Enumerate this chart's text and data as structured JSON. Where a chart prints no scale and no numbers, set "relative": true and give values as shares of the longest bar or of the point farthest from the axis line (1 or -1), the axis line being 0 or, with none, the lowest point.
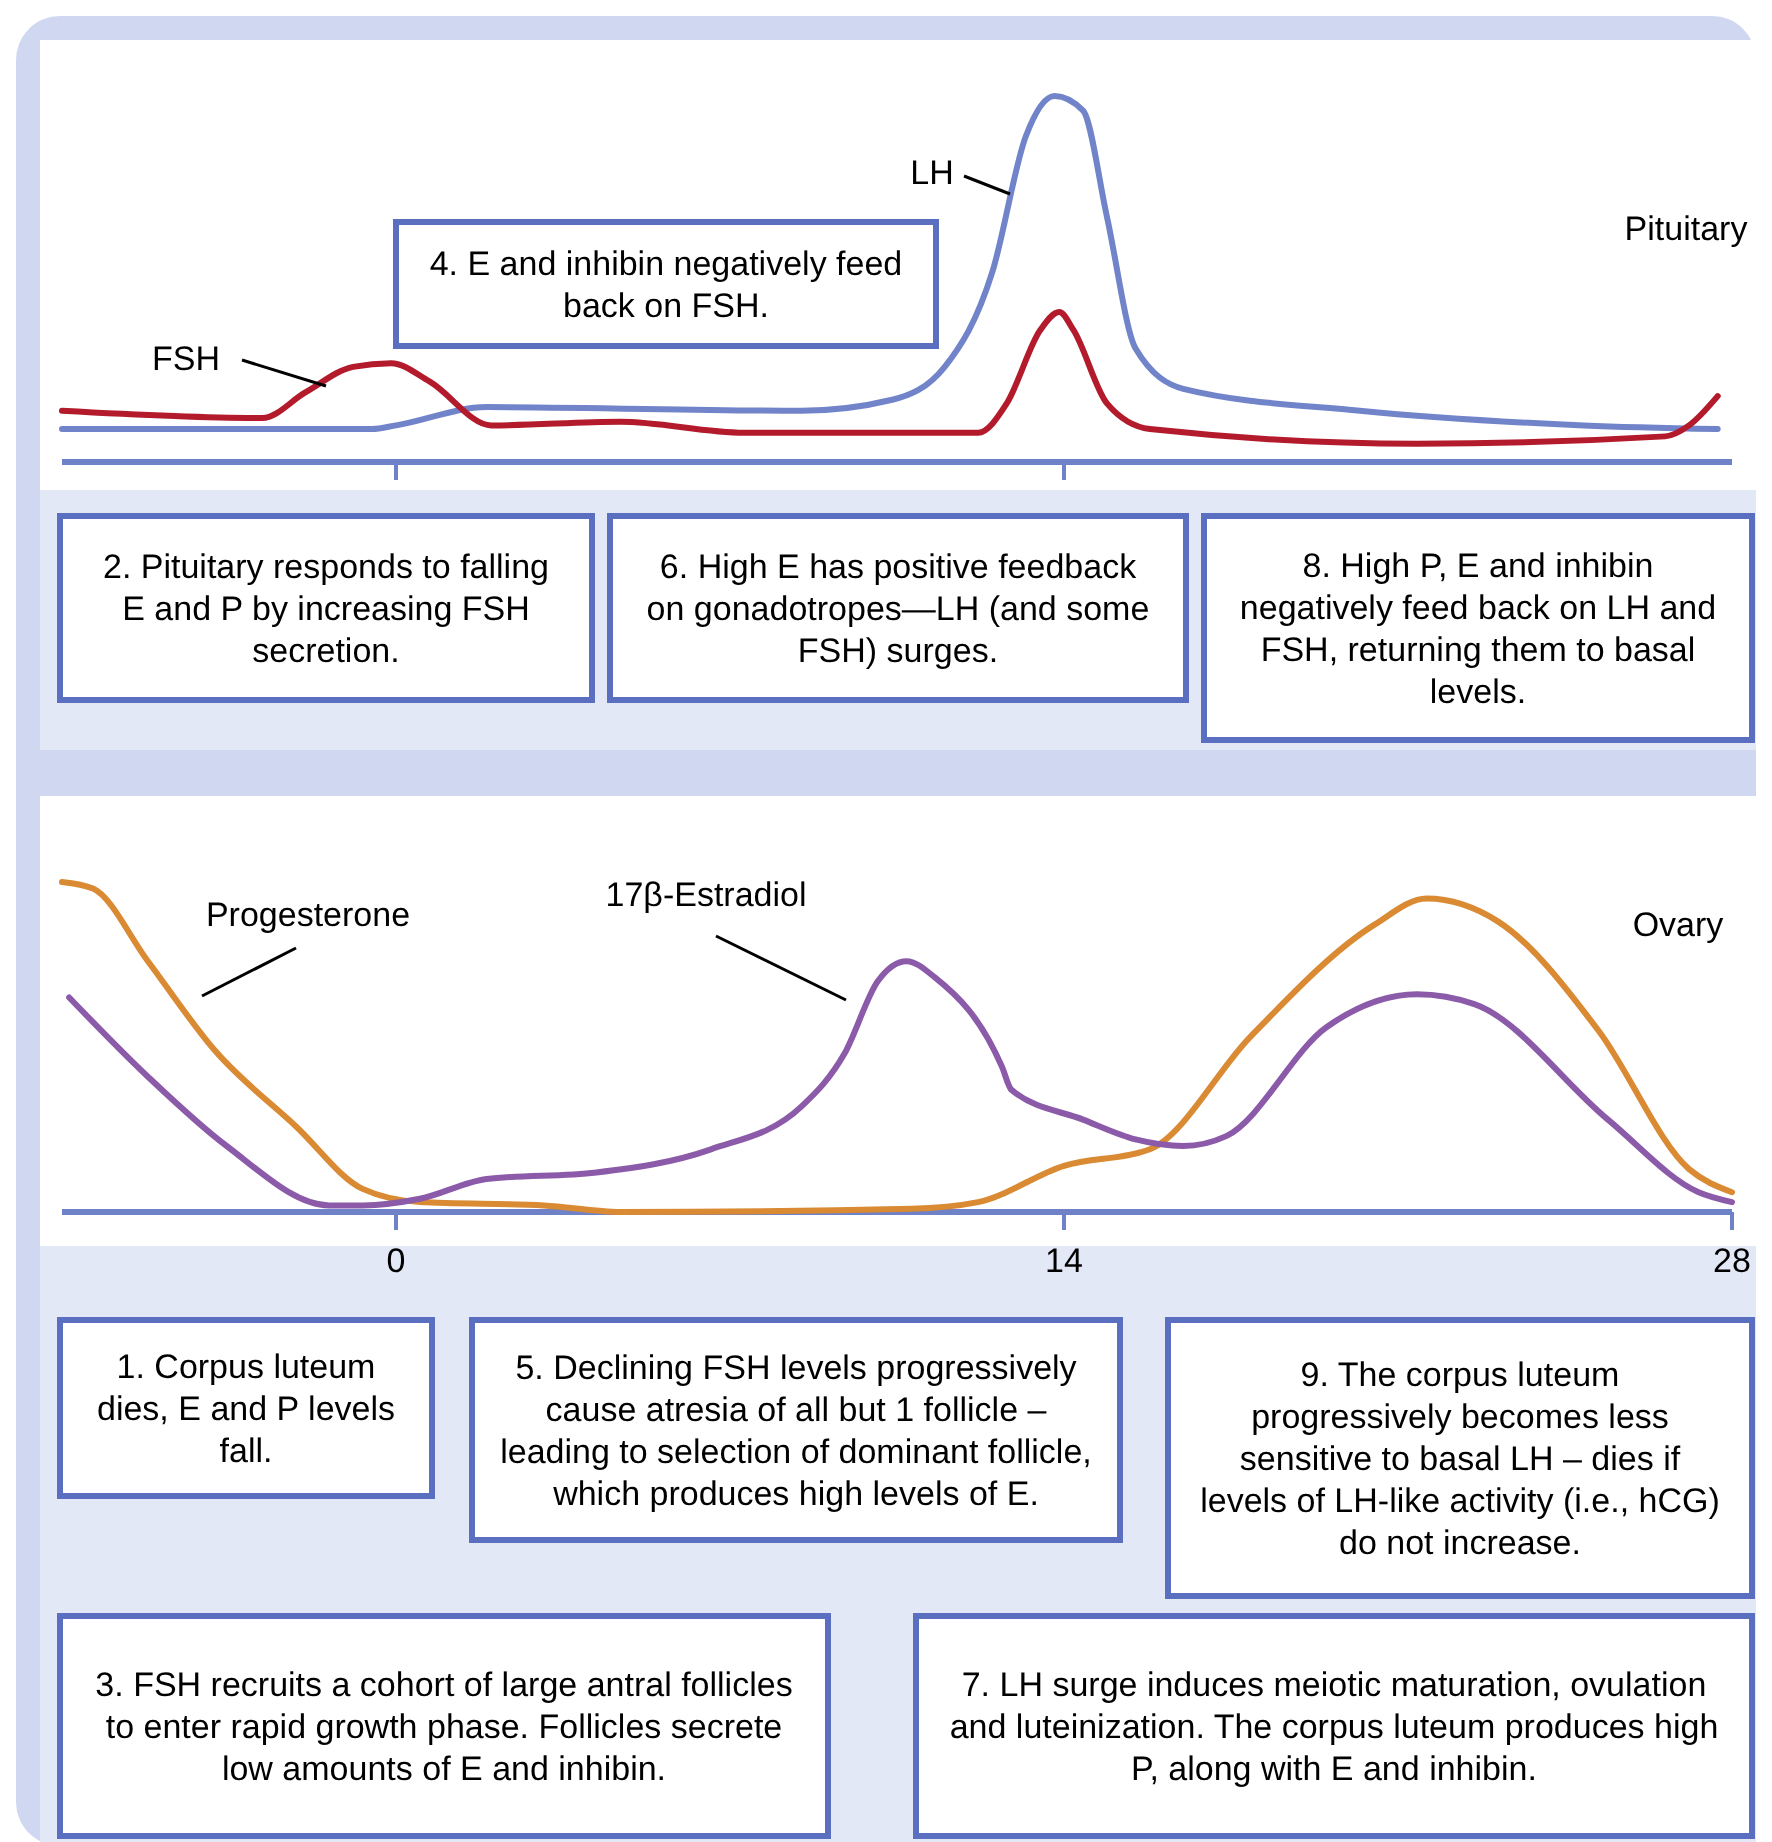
{
  "chart_data": [
    {
      "type": "line",
      "relative": true,
      "tick_labels": false,
      "xlim": [
        -7,
        28
      ],
      "xticks": [
        {
          "value": 0,
          "label": null
        },
        {
          "value": 14,
          "label": null
        }
      ],
      "series": [
        {
          "name": "LH",
          "color": "#7184c9",
          "x": [
            -7.0,
            -0.5,
            0,
            1.9,
            8.5,
            10.4,
            11.5,
            12.5,
            13.2,
            13.8,
            14.4,
            14.9,
            15.5,
            16.5,
            20.2,
            24.9,
            27.7
          ],
          "values": [
            0.09,
            0.09,
            0.1,
            0.15,
            0.14,
            0.17,
            0.26,
            0.52,
            0.89,
            1,
            0.96,
            0.67,
            0.31,
            0.2,
            0.14,
            0.1,
            0.09
          ]
        },
        {
          "name": "FSH",
          "color": "#b31b2c",
          "x": [
            -7.0,
            -2.8,
            -1.9,
            -0.9,
            -0.1,
            0.7,
            2.0,
            4.7,
            7.3,
            12.2,
            12.8,
            13.5,
            13.9,
            14.2,
            14.9,
            15.8,
            21.4,
            26.6,
            27.1,
            27.7
          ],
          "values": [
            0.14,
            0.12,
            0.19,
            0.26,
            0.27,
            0.22,
            0.1,
            0.11,
            0.08,
            0.08,
            0.16,
            0.36,
            0.41,
            0.36,
            0.16,
            0.09,
            0.05,
            0.07,
            0.1,
            0.18
          ]
        }
      ],
      "annotations": [
        "Pituitary",
        "4. E and inhibin negatively feed back on FSH.",
        "2. Pituitary responds to falling E and P by increasing FSH secretion.",
        "6. High E has positive feedback on gonadotropes—LH (and some FSH) surges.",
        "8. High P, E and inhibin negatively feed back on LH and FSH, returning them to basal levels."
      ]
    },
    {
      "type": "line",
      "relative": true,
      "tick_labels": "x",
      "xlim": [
        -7,
        28
      ],
      "xticks": [
        0,
        14,
        28
      ],
      "series": [
        {
          "name": "Progesterone",
          "color": "#d98a33",
          "x": [
            -7.0,
            -6.35,
            -5.2,
            -3.8,
            -2.1,
            -0.7,
            0.5,
            3.1,
            4.7,
            10.8,
            12.2,
            14.0,
            15.8,
            17.9,
            20.5,
            21.6,
            23.1,
            25.2,
            27.1,
            28
          ],
          "values": [
            1,
            0.98,
            0.76,
            0.49,
            0.26,
            0.07,
            0.03,
            0.02,
            0,
            0.01,
            0.03,
            0.14,
            0.19,
            0.53,
            0.87,
            0.95,
            0.88,
            0.55,
            0.13,
            0.06
          ]
        },
        {
          "name": "17β-Estradiol",
          "color": "#8b5aa8",
          "x": [
            -6.85,
            -5.2,
            -3.55,
            -1.4,
            -0.7,
            0.5,
            1.9,
            4.2,
            6.6,
            8.5,
            9.4,
            10.1,
            10.7,
            11.3,
            12.7,
            12.9,
            14.4,
            15.5,
            16.5,
            17.4,
            19.5,
            21.4,
            22.6,
            25.4,
            27.3,
            28
          ],
          "values": [
            0.65,
            0.41,
            0.2,
            0.02,
            0.02,
            0.04,
            0.1,
            0.12,
            0.19,
            0.32,
            0.48,
            0.7,
            0.76,
            0.71,
            0.44,
            0.37,
            0.28,
            0.22,
            0.2,
            0.23,
            0.56,
            0.66,
            0.63,
            0.28,
            0.06,
            0.03
          ]
        }
      ],
      "annotations": [
        "Ovary",
        "1. Corpus luteum dies, E and P levels fall.",
        "5. Declining FSH levels progressively cause atresia of all but 1 follicle – leading to selection of dominant follicle, which produces high levels of E.",
        "9. The corpus luteum progressively becomes less sensitive to basal LH – dies if levels of LH-like activity (i.e., hCG) do not increase.",
        "3. FSH recruits a cohort of large antral follicles to enter rapid growth phase. Follicles secrete low amounts of E and inhibin.",
        "7. LH surge induces meiotic maturation, ovulation and luteinization.  The corpus luteum produces high P, along with E and inhibin."
      ]
    }
  ]
}
